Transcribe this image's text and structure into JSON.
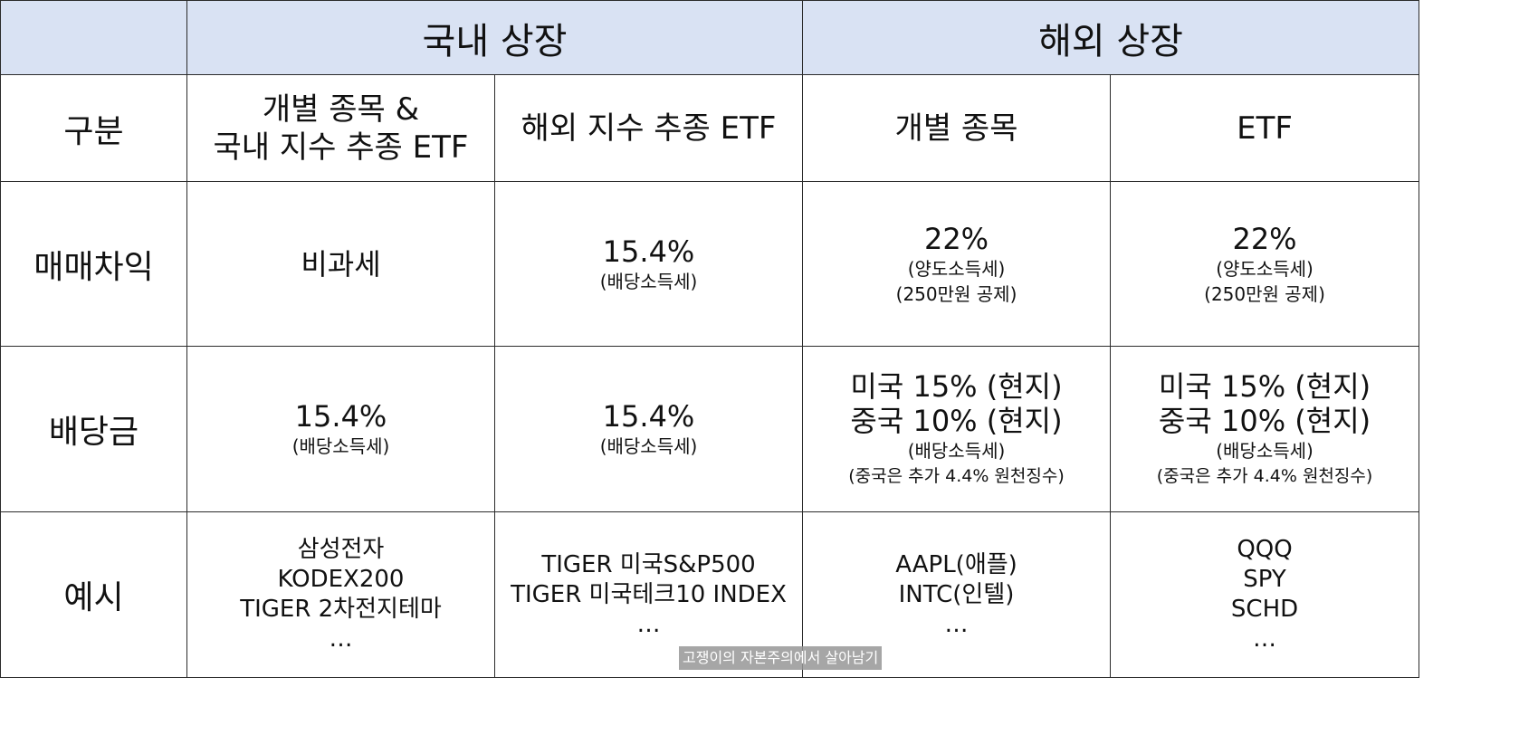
{
  "groups": {
    "domestic": "국내 상장",
    "overseas": "해외 상장"
  },
  "subheaders": {
    "label": "구분",
    "domestic_stocks": [
      "개별 종목 &",
      "국내 지수 추종 ETF"
    ],
    "domestic_foreign_etf": "해외 지수 추종 ETF",
    "overseas_stocks": "개별 종목",
    "overseas_etf": "ETF"
  },
  "rows": {
    "capital_gains": {
      "label": "매매차익",
      "domestic_stocks": {
        "main": "비과세"
      },
      "domestic_foreign_etf": {
        "main": "15.4%",
        "note": "(배당소득세)"
      },
      "overseas_stocks": {
        "main": "22%",
        "note1": "(양도소득세)",
        "note2": "(250만원 공제)"
      },
      "overseas_etf": {
        "main": "22%",
        "note1": "(양도소득세)",
        "note2": "(250만원 공제)"
      }
    },
    "dividends": {
      "label": "배당금",
      "domestic_stocks": {
        "main": "15.4%",
        "note": "(배당소득세)"
      },
      "domestic_foreign_etf": {
        "main": "15.4%",
        "note": "(배당소득세)"
      },
      "overseas_stocks": {
        "line1": "미국 15% (현지)",
        "line2": "중국 10% (현지)",
        "note1": "(배당소득세)",
        "note2": "(중국은 추가 4.4% 원천징수)"
      },
      "overseas_etf": {
        "line1": "미국 15% (현지)",
        "line2": "중국 10% (현지)",
        "note1": "(배당소득세)",
        "note2": "(중국은 추가 4.4% 원천징수)"
      }
    },
    "examples": {
      "label": "예시",
      "domestic_stocks": [
        "삼성전자",
        "KODEX200",
        "TIGER 2차전지테마",
        "…"
      ],
      "domestic_foreign_etf": [
        "TIGER 미국S&P500",
        "TIGER 미국테크10 INDEX",
        "…"
      ],
      "overseas_stocks": [
        "AAPL(애플)",
        "INTC(인텔)",
        "…"
      ],
      "overseas_etf": [
        "QQQ",
        "SPY",
        "SCHD",
        "…"
      ]
    }
  },
  "watermark": "고쟁이의 자본주의에서 살아남기",
  "colors": {
    "header_bg": "#d9e2f3",
    "border": "#2b2b2b",
    "text": "#111111"
  }
}
